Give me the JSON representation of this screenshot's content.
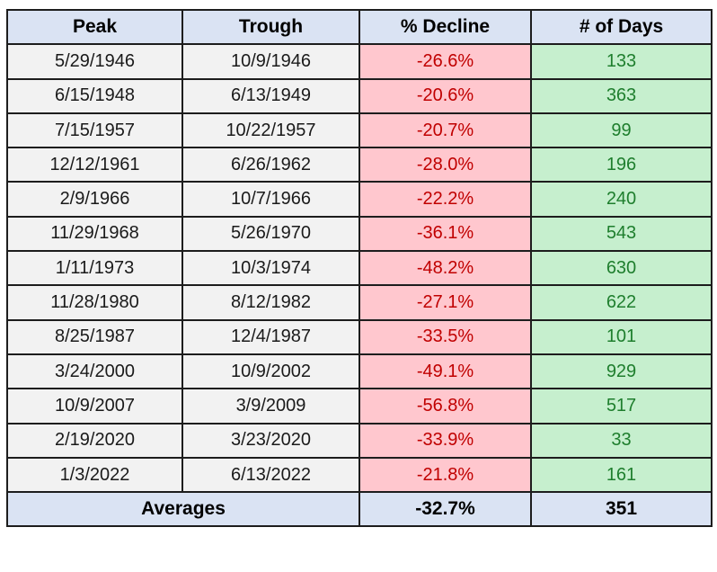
{
  "colors": {
    "page_background": "#ffffff",
    "header_background": "#dae3f3",
    "date_cell_background": "#f2f2f2",
    "decline_cell_background": "#ffc7ce",
    "decline_text": "#c00000",
    "days_cell_background": "#c6efce",
    "days_text": "#1e7e2d",
    "border": "#1d1d1d",
    "footer_background": "#dae3f3"
  },
  "chart_data": {
    "type": "table",
    "columns": [
      "Peak",
      "Trough",
      "% Decline",
      "# of Days"
    ],
    "rows": [
      [
        "5/29/1946",
        "10/9/1946",
        "-26.6%",
        133
      ],
      [
        "6/15/1948",
        "6/13/1949",
        "-20.6%",
        363
      ],
      [
        "7/15/1957",
        "10/22/1957",
        "-20.7%",
        99
      ],
      [
        "12/12/1961",
        "6/26/1962",
        "-28.0%",
        196
      ],
      [
        "2/9/1966",
        "10/7/1966",
        "-22.2%",
        240
      ],
      [
        "11/29/1968",
        "5/26/1970",
        "-36.1%",
        543
      ],
      [
        "1/11/1973",
        "10/3/1974",
        "-48.2%",
        630
      ],
      [
        "11/28/1980",
        "8/12/1982",
        "-27.1%",
        622
      ],
      [
        "8/25/1987",
        "12/4/1987",
        "-33.5%",
        101
      ],
      [
        "3/24/2000",
        "10/9/2002",
        "-49.1%",
        929
      ],
      [
        "10/9/2007",
        "3/9/2009",
        "-56.8%",
        517
      ],
      [
        "2/19/2020",
        "3/23/2020",
        "-33.9%",
        33
      ],
      [
        "1/3/2022",
        "6/13/2022",
        "-21.8%",
        161
      ]
    ],
    "averages": {
      "label": "Averages",
      "decline": "-32.7%",
      "days": 351
    }
  }
}
